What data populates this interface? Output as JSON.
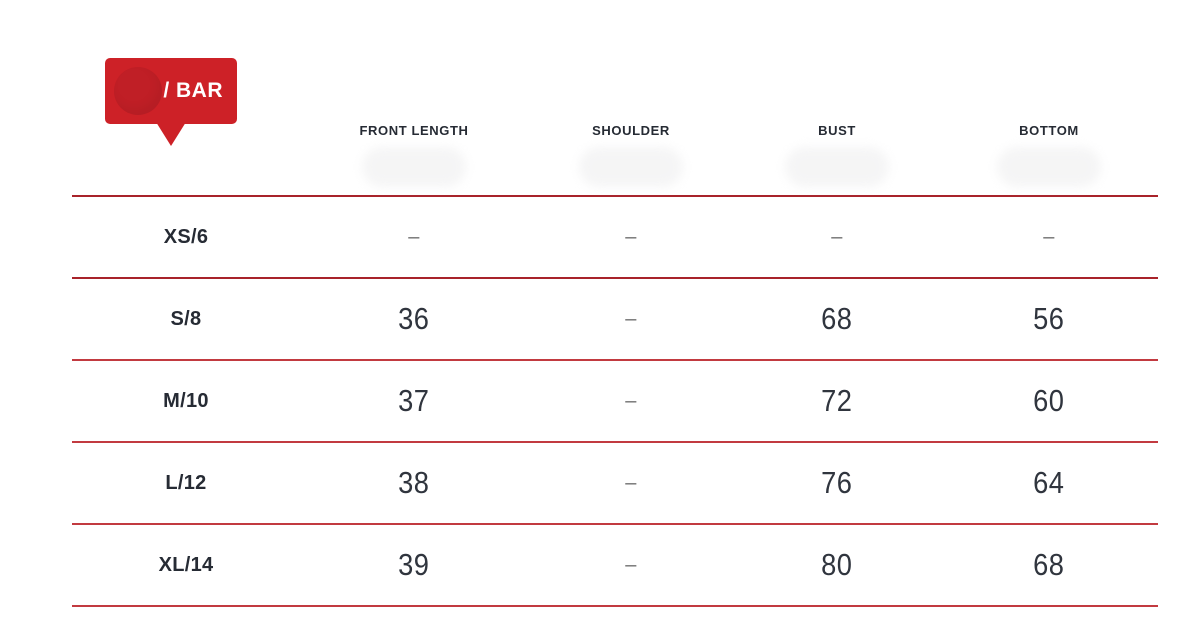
{
  "badge": {
    "label": "/ BAR"
  },
  "colors": {
    "badge-red": "#cd2127",
    "badge-circle-red": "#c01f26",
    "line-dark-red": "#a8232a",
    "line-light-red": "#c23a40",
    "text-dark": "#262b34",
    "value-dark": "#30353e",
    "dash-gray": "#6e6e6e"
  },
  "table": {
    "columns": [
      "",
      "FRONT LENGTH",
      "SHOULDER",
      "BUST",
      "BOTTOM"
    ],
    "rows": [
      {
        "size": "XS/6",
        "values": [
          "–",
          "–",
          "–",
          "–"
        ]
      },
      {
        "size": "S/8",
        "values": [
          "36",
          "–",
          "68",
          "56"
        ]
      },
      {
        "size": "M/10",
        "values": [
          "37",
          "–",
          "72",
          "60"
        ]
      },
      {
        "size": "L/12",
        "values": [
          "38",
          "–",
          "76",
          "64"
        ]
      },
      {
        "size": "XL/14",
        "values": [
          "39",
          "–",
          "80",
          "68"
        ]
      }
    ]
  }
}
